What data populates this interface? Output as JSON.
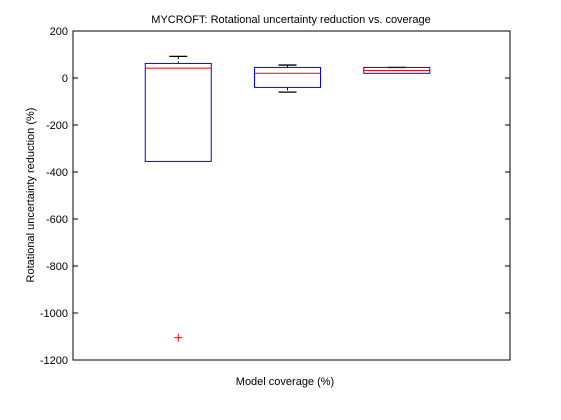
{
  "chart_data": {
    "type": "box",
    "title": "MYCROFT: Rotational uncertainty reduction vs. coverage",
    "xlabel": "Model coverage (%)",
    "ylabel": "Rotational uncertainty reduction (%)",
    "ylim": [
      -1200,
      200
    ],
    "yticks": [
      200,
      0,
      -200,
      -400,
      -600,
      -800,
      -1000,
      -1200
    ],
    "grid": false,
    "boxes": [
      {
        "whisker_high": 92,
        "q3": 62,
        "median": 42,
        "q1": -355,
        "whisker_low": -355,
        "outliers": [
          -1105
        ]
      },
      {
        "whisker_high": 55,
        "q3": 45,
        "median": 20,
        "q1": -40,
        "whisker_low": -60,
        "outliers": []
      },
      {
        "whisker_high": 45,
        "q3": 45,
        "median": 32,
        "q1": 20,
        "whisker_low": 20,
        "outliers": []
      }
    ],
    "colors": {
      "box": "#0000ff",
      "median": "#ff0000",
      "whisker": "#000000",
      "outlier": "#ff0000",
      "axes": "#000000"
    }
  }
}
